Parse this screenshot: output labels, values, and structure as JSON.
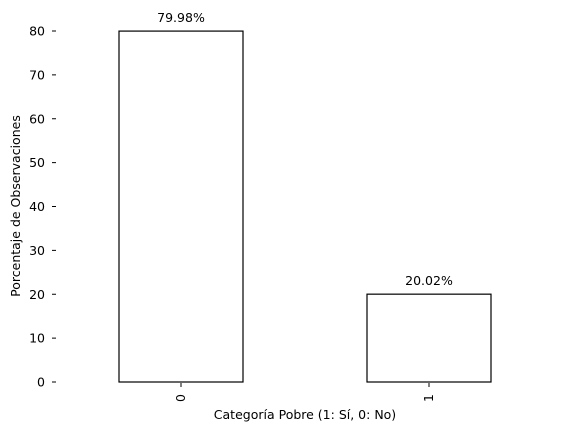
{
  "chart_data": {
    "type": "bar",
    "categories": [
      "0",
      "1"
    ],
    "values": [
      79.98,
      20.02
    ],
    "data_labels": [
      "79.98%",
      "20.02%"
    ],
    "xlabel": "Categoría Pobre (1: Sí, 0: No)",
    "ylabel": "Porcentaje de Observaciones",
    "ylim": [
      0,
      80
    ],
    "yticks": [
      0,
      10,
      20,
      30,
      40,
      50,
      60,
      70,
      80
    ],
    "grid": false,
    "legend": "none",
    "bar_fill": "#ffffff",
    "bar_edge": "#000000"
  }
}
